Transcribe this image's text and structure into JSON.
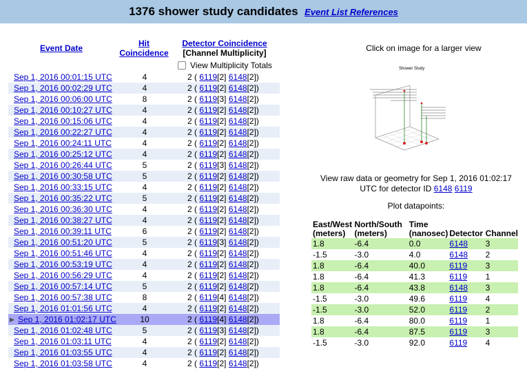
{
  "header": {
    "title": "1376 shower study candidates",
    "ref_link": "Event List References"
  },
  "columns": {
    "event_date": "Event Date",
    "hit_1": "Hit",
    "hit_2": "Coincidence",
    "det_1": "Detector Coincidence",
    "det_2": "[Channel Multiplicity]",
    "mult_totals": "View Multiplicity Totals"
  },
  "events": [
    {
      "date": "Sep 1, 2016 00:01:15 UTC",
      "hits": "4",
      "n": "2",
      "a": "6119",
      "am": "[2]",
      "b": "6148",
      "bm": "[2]"
    },
    {
      "date": "Sep 1, 2016 00:02:29 UTC",
      "hits": "4",
      "n": "2",
      "a": "6119",
      "am": "[2]",
      "b": "6148",
      "bm": "[2]"
    },
    {
      "date": "Sep 1, 2016 00:06:00 UTC",
      "hits": "8",
      "n": "2",
      "a": "6119",
      "am": "[3]",
      "b": "6148",
      "bm": "[2]"
    },
    {
      "date": "Sep 1, 2016 00:10:27 UTC",
      "hits": "4",
      "n": "2",
      "a": "6119",
      "am": "[2]",
      "b": "6148",
      "bm": "[2]"
    },
    {
      "date": "Sep 1, 2016 00:15:06 UTC",
      "hits": "4",
      "n": "2",
      "a": "6119",
      "am": "[2]",
      "b": "6148",
      "bm": "[2]"
    },
    {
      "date": "Sep 1, 2016 00:22:27 UTC",
      "hits": "4",
      "n": "2",
      "a": "6119",
      "am": "[2]",
      "b": "6148",
      "bm": "[2]"
    },
    {
      "date": "Sep 1, 2016 00:24:11 UTC",
      "hits": "4",
      "n": "2",
      "a": "6119",
      "am": "[2]",
      "b": "6148",
      "bm": "[2]"
    },
    {
      "date": "Sep 1, 2016 00:25:12 UTC",
      "hits": "4",
      "n": "2",
      "a": "6119",
      "am": "[2]",
      "b": "6148",
      "bm": "[2]"
    },
    {
      "date": "Sep 1, 2016 00:26:44 UTC",
      "hits": "5",
      "n": "2",
      "a": "6119",
      "am": "[3]",
      "b": "6148",
      "bm": "[2]"
    },
    {
      "date": "Sep 1, 2016 00:30:58 UTC",
      "hits": "5",
      "n": "2",
      "a": "6119",
      "am": "[2]",
      "b": "6148",
      "bm": "[2]"
    },
    {
      "date": "Sep 1, 2016 00:33:15 UTC",
      "hits": "4",
      "n": "2",
      "a": "6119",
      "am": "[2]",
      "b": "6148",
      "bm": "[2]"
    },
    {
      "date": "Sep 1, 2016 00:35:22 UTC",
      "hits": "5",
      "n": "2",
      "a": "6119",
      "am": "[2]",
      "b": "6148",
      "bm": "[2]"
    },
    {
      "date": "Sep 1, 2016 00:36:30 UTC",
      "hits": "4",
      "n": "2",
      "a": "6119",
      "am": "[2]",
      "b": "6148",
      "bm": "[2]"
    },
    {
      "date": "Sep 1, 2016 00:38:27 UTC",
      "hits": "4",
      "n": "2",
      "a": "6119",
      "am": "[2]",
      "b": "6148",
      "bm": "[2]"
    },
    {
      "date": "Sep 1, 2016 00:39:11 UTC",
      "hits": "6",
      "n": "2",
      "a": "6119",
      "am": "[2]",
      "b": "6148",
      "bm": "[2]"
    },
    {
      "date": "Sep 1, 2016 00:51:20 UTC",
      "hits": "5",
      "n": "2",
      "a": "6119",
      "am": "[3]",
      "b": "6148",
      "bm": "[2]"
    },
    {
      "date": "Sep 1, 2016 00:51:46 UTC",
      "hits": "4",
      "n": "2",
      "a": "6119",
      "am": "[2]",
      "b": "6148",
      "bm": "[2]"
    },
    {
      "date": "Sep 1, 2016 00:53:19 UTC",
      "hits": "4",
      "n": "2",
      "a": "6119",
      "am": "[2]",
      "b": "6148",
      "bm": "[2]"
    },
    {
      "date": "Sep 1, 2016 00:56:29 UTC",
      "hits": "4",
      "n": "2",
      "a": "6119",
      "am": "[2]",
      "b": "6148",
      "bm": "[2]"
    },
    {
      "date": "Sep 1, 2016 00:57:14 UTC",
      "hits": "5",
      "n": "2",
      "a": "6119",
      "am": "[2]",
      "b": "6148",
      "bm": "[2]"
    },
    {
      "date": "Sep 1, 2016 00:57:38 UTC",
      "hits": "8",
      "n": "2",
      "a": "6119",
      "am": "[4]",
      "b": "6148",
      "bm": "[2]"
    },
    {
      "date": "Sep 1, 2016 01:01:56 UTC",
      "hits": "4",
      "n": "2",
      "a": "6119",
      "am": "[2]",
      "b": "6148",
      "bm": "[2]"
    },
    {
      "date": "Sep 1, 2016 01:02:17 UTC",
      "hits": "10",
      "n": "2",
      "a": "6119",
      "am": "[4]",
      "b": "6148",
      "bm": "[2]",
      "selected": true
    },
    {
      "date": "Sep 1, 2016 01:02:48 UTC",
      "hits": "5",
      "n": "2",
      "a": "6119",
      "am": "[3]",
      "b": "6148",
      "bm": "[2]"
    },
    {
      "date": "Sep 1, 2016 01:03:11 UTC",
      "hits": "4",
      "n": "2",
      "a": "6119",
      "am": "[2]",
      "b": "6148",
      "bm": "[2]"
    },
    {
      "date": "Sep 1, 2016 01:03:55 UTC",
      "hits": "4",
      "n": "2",
      "a": "6119",
      "am": "[2]",
      "b": "6148",
      "bm": "[2]"
    },
    {
      "date": "Sep 1, 2016 01:03:58 UTC",
      "hits": "4",
      "n": "2",
      "a": "6119",
      "am": "[2]",
      "b": "6148",
      "bm": "[2]"
    }
  ],
  "right": {
    "click_note": "Click on image for a larger view",
    "plot_title": "Shower Study",
    "raw_prefix": "View raw data or geometry for Sep 1, 2016 01:02:17",
    "raw_suffix": "UTC for detector ID",
    "det_a": "6148",
    "det_b": "6119",
    "plot_datapoints": "Plot datapoints:"
  },
  "datatable": {
    "headers": {
      "ew_1": "East/West",
      "ew_2": "(meters)",
      "ns_1": "North/South",
      "ns_2": "(meters)",
      "t_1": "Time",
      "t_2": "(nanosec)",
      "det": "Detector",
      "ch": "Channel"
    },
    "rows": [
      {
        "ew": "1.8",
        "ns": "-6.4",
        "t": "0.0",
        "det": "6148",
        "ch": "3",
        "g": true
      },
      {
        "ew": "-1.5",
        "ns": "-3.0",
        "t": "4.0",
        "det": "6148",
        "ch": "2",
        "g": false
      },
      {
        "ew": "1.8",
        "ns": "-6.4",
        "t": "40.0",
        "det": "6119",
        "ch": "3",
        "g": true
      },
      {
        "ew": "1.8",
        "ns": "-6.4",
        "t": "41.3",
        "det": "6119",
        "ch": "1",
        "g": false
      },
      {
        "ew": "1.8",
        "ns": "-6.4",
        "t": "43.8",
        "det": "6148",
        "ch": "3",
        "g": true
      },
      {
        "ew": "-1.5",
        "ns": "-3.0",
        "t": "49.6",
        "det": "6119",
        "ch": "4",
        "g": false
      },
      {
        "ew": "-1.5",
        "ns": "-3.0",
        "t": "52.0",
        "det": "6119",
        "ch": "2",
        "g": true
      },
      {
        "ew": "1.8",
        "ns": "-6.4",
        "t": "80.0",
        "det": "6119",
        "ch": "1",
        "g": false
      },
      {
        "ew": "1.8",
        "ns": "-6.4",
        "t": "87.5",
        "det": "6119",
        "ch": "3",
        "g": true
      },
      {
        "ew": "-1.5",
        "ns": "-3.0",
        "t": "92.0",
        "det": "6119",
        "ch": "4",
        "g": false
      }
    ]
  }
}
